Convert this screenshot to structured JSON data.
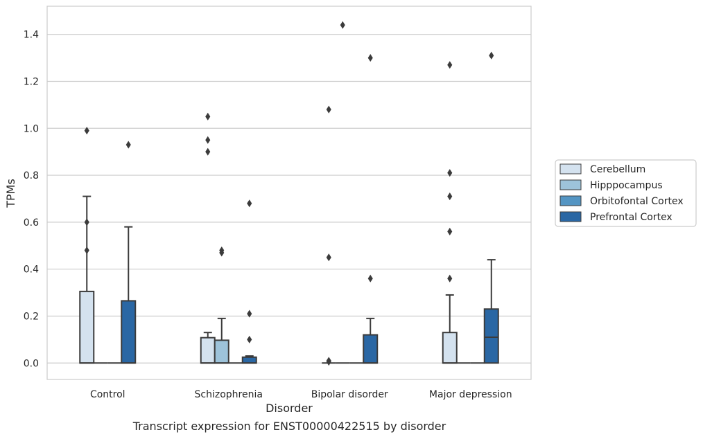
{
  "chart_data": {
    "type": "box",
    "caption": "Transcript expression for ENST00000422515 by disorder",
    "xlabel": "Disorder",
    "ylabel": "TPMs",
    "ylim": [
      -0.07,
      1.52
    ],
    "yticks": [
      0.0,
      0.2,
      0.4,
      0.6,
      0.8,
      1.0,
      1.2,
      1.4
    ],
    "grid": true,
    "legend_position": "right",
    "categories": [
      "Control",
      "Schizophrenia",
      "Bipolar disorder",
      "Major depression"
    ],
    "series": [
      {
        "name": "Cerebellum",
        "color": "#d4e2ef",
        "boxes": [
          {
            "min": 0.0,
            "q1": 0.0,
            "median": 0.0,
            "q3": 0.305,
            "max": 0.71,
            "outliers": [
              0.99,
              0.6,
              0.48
            ]
          },
          {
            "min": 0.0,
            "q1": 0.0,
            "median": 0.0,
            "q3": 0.108,
            "max": 0.13,
            "outliers": [
              1.05,
              0.95,
              0.9
            ]
          },
          {
            "min": 0.0,
            "q1": 0.0,
            "median": 0.0,
            "q3": 0.0,
            "max": 0.0,
            "outliers": [
              1.08,
              0.45,
              0.01,
              0.005
            ]
          },
          {
            "min": 0.0,
            "q1": 0.0,
            "median": 0.0,
            "q3": 0.13,
            "max": 0.29,
            "outliers": [
              1.27,
              0.81,
              0.71,
              0.56,
              0.36
            ]
          }
        ]
      },
      {
        "name": "Hipppocampus",
        "color": "#9dc3da",
        "boxes": [
          {
            "min": 0.0,
            "q1": 0.0,
            "median": 0.0,
            "q3": 0.0,
            "max": 0.0,
            "outliers": []
          },
          {
            "min": 0.0,
            "q1": 0.0,
            "median": 0.0,
            "q3": 0.097,
            "max": 0.19,
            "outliers": [
              0.48,
              0.47
            ]
          },
          {
            "min": 0.0,
            "q1": 0.0,
            "median": 0.0,
            "q3": 0.0,
            "max": 0.0,
            "outliers": [
              1.44
            ]
          },
          {
            "min": 0.0,
            "q1": 0.0,
            "median": 0.0,
            "q3": 0.0,
            "max": 0.0,
            "outliers": []
          }
        ]
      },
      {
        "name": "Orbitofontal Cortex",
        "color": "#5495c3",
        "boxes": [
          {
            "min": 0.0,
            "q1": 0.0,
            "median": 0.0,
            "q3": 0.0,
            "max": 0.0,
            "outliers": []
          },
          {
            "min": 0.0,
            "q1": 0.0,
            "median": 0.0,
            "q3": 0.0,
            "max": 0.0,
            "outliers": []
          },
          {
            "min": 0.0,
            "q1": 0.0,
            "median": 0.0,
            "q3": 0.0,
            "max": 0.0,
            "outliers": []
          },
          {
            "min": 0.0,
            "q1": 0.0,
            "median": 0.0,
            "q3": 0.0,
            "max": 0.0,
            "outliers": []
          }
        ]
      },
      {
        "name": "Prefrontal Cortex",
        "color": "#2a67a4",
        "boxes": [
          {
            "min": 0.0,
            "q1": 0.0,
            "median": 0.0,
            "q3": 0.265,
            "max": 0.58,
            "outliers": [
              0.93
            ]
          },
          {
            "min": 0.0,
            "q1": 0.0,
            "median": 0.0,
            "q3": 0.025,
            "max": 0.03,
            "outliers": [
              0.68,
              0.21,
              0.1
            ]
          },
          {
            "min": 0.0,
            "q1": 0.0,
            "median": 0.0,
            "q3": 0.12,
            "max": 0.19,
            "outliers": [
              1.3,
              0.36
            ]
          },
          {
            "min": 0.0,
            "q1": 0.0,
            "median": 0.11,
            "q3": 0.23,
            "max": 0.44,
            "outliers": [
              1.31
            ]
          }
        ]
      }
    ]
  }
}
